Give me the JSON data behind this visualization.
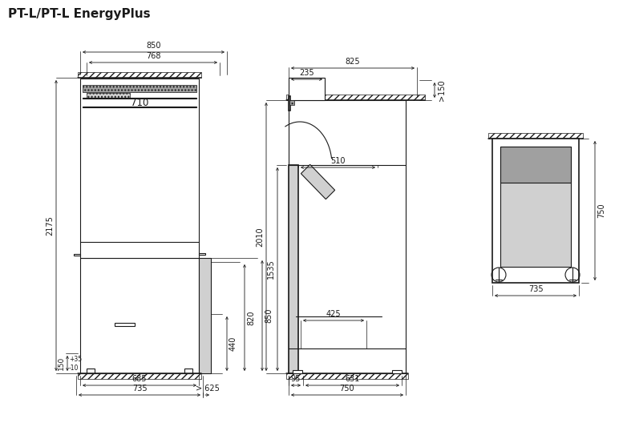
{
  "title": "PT-L/PT-L EnergyPlus",
  "title_fontsize": 11,
  "line_color": "#1a1a1a",
  "dim_color": "#1a1a1a",
  "fill_light": "#d0d0d0",
  "fill_medium": "#a0a0a0",
  "fill_dark": "#707070",
  "fill_white": "#ffffff",
  "bg_color": "#ffffff",
  "dim_fontsize": 7,
  "lw": 0.8,
  "lw_thick": 1.2
}
